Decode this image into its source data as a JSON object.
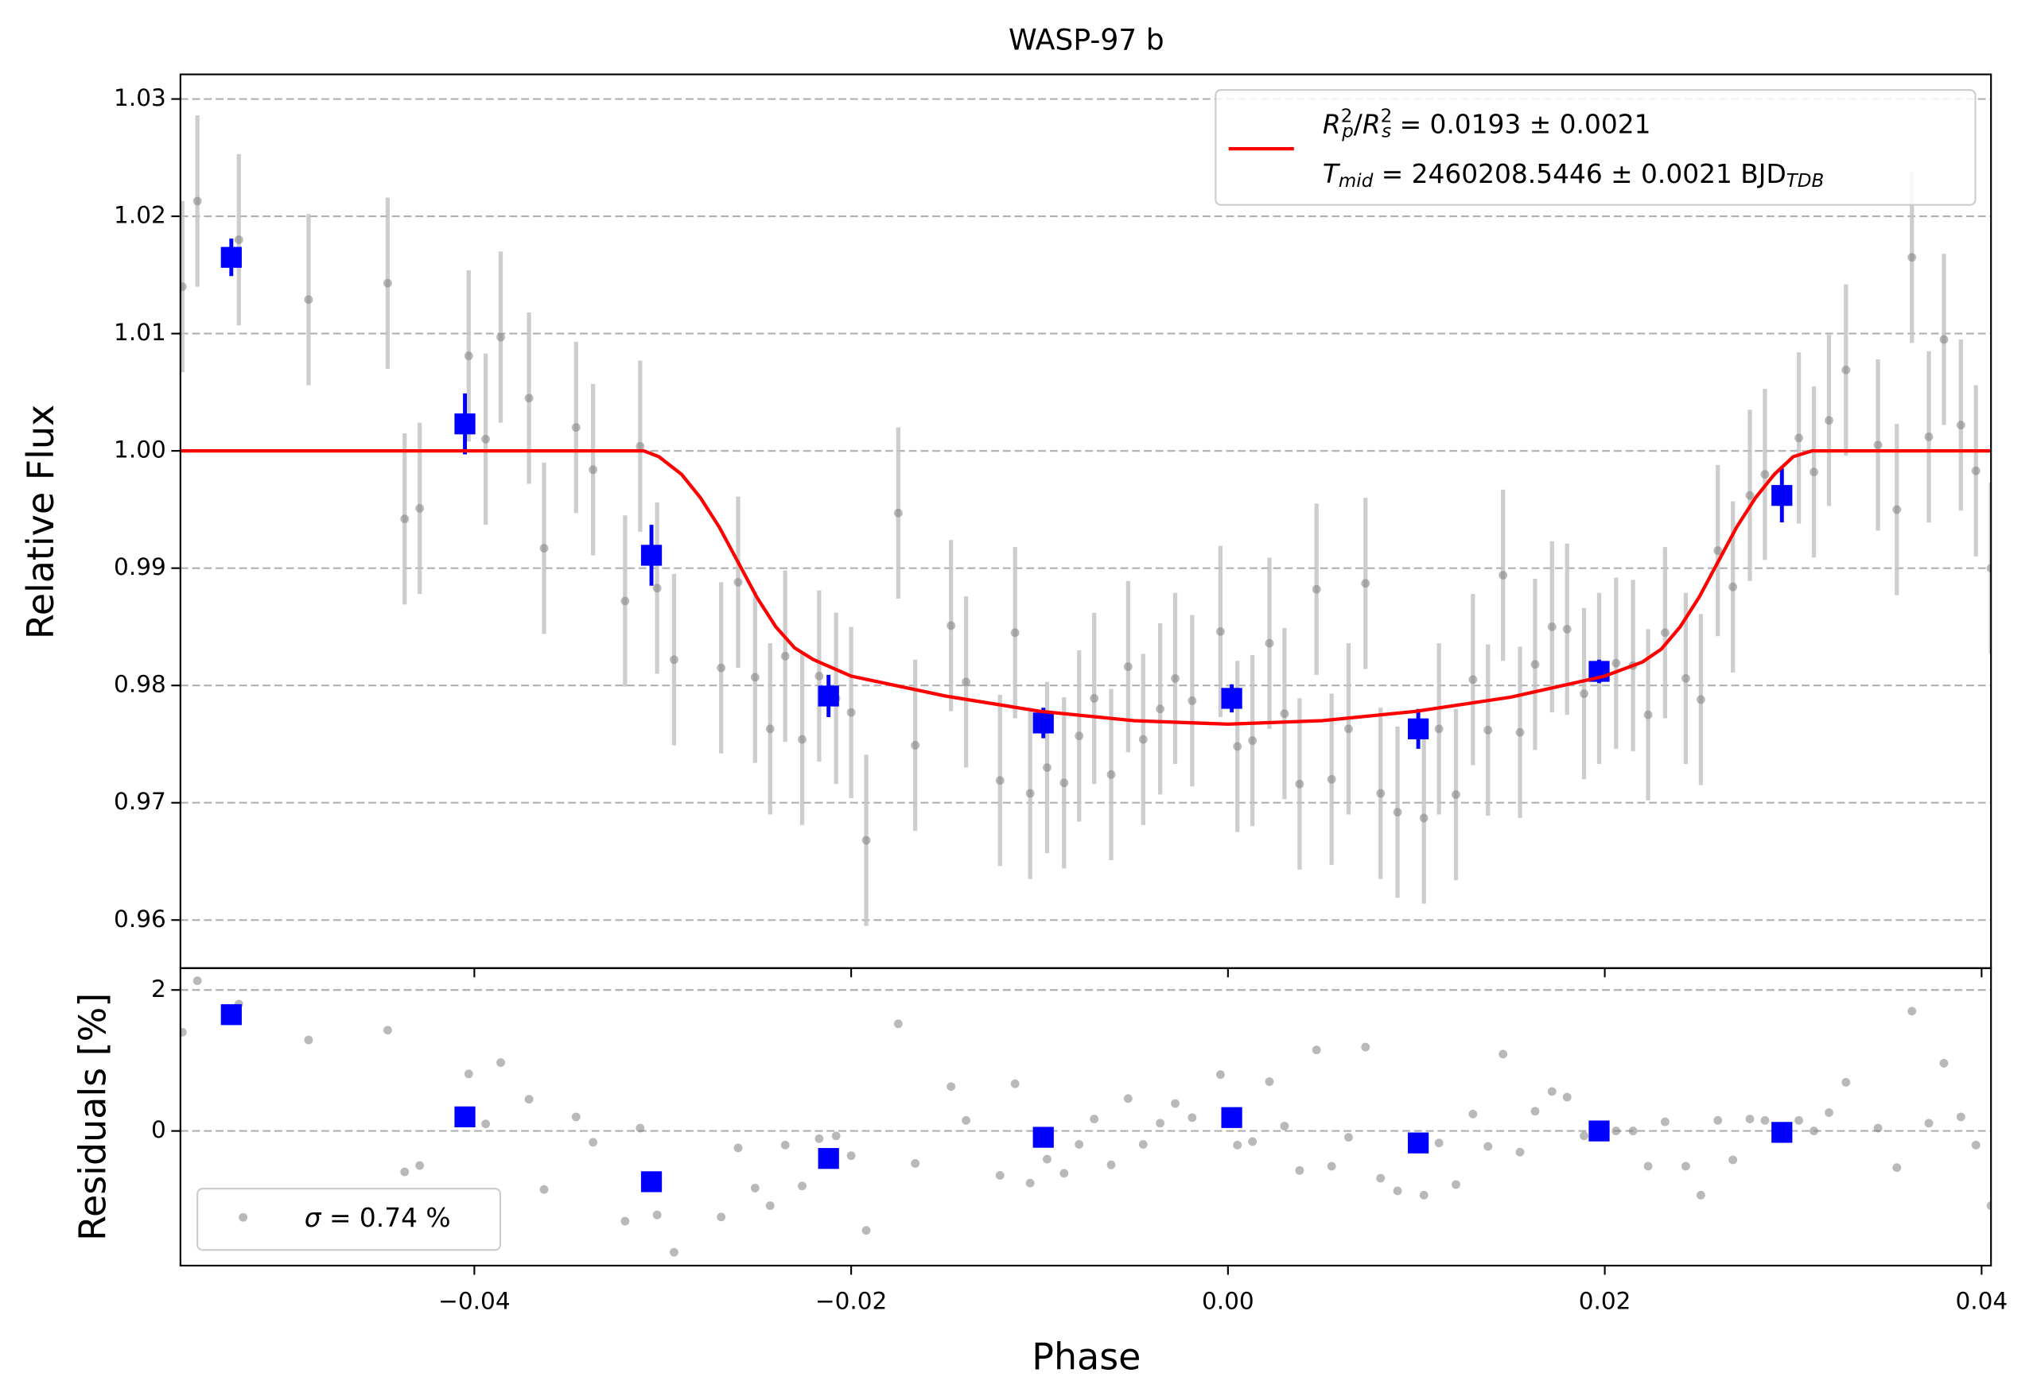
{
  "title": "WASP-97 b",
  "chart_data": [
    {
      "type": "errorbar",
      "ylabel": "Relative Flux",
      "ylim": [
        0.9559,
        1.0321
      ],
      "yticks": [
        0.96,
        0.97,
        0.98,
        0.99,
        {
          "value": 1,
          "label": "1.00"
        },
        1.01,
        1.02,
        1.03
      ],
      "grid": true,
      "legend": "upper right",
      "series": [
        {
          "type": "errorbar",
          "marker": "circle",
          "color": "#808080",
          "error_color": "#c4c4c4",
          "error": 0.0073,
          "x": [
            -0.0555,
            -0.0547,
            -0.0525,
            -0.0488,
            -0.0446,
            -0.0437,
            -0.0429,
            -0.0403,
            -0.0394,
            -0.0386,
            -0.0371,
            -0.0363,
            -0.0346,
            -0.0337,
            -0.032,
            -0.0312,
            -0.0303,
            -0.0294,
            -0.0269,
            -0.026,
            -0.0251,
            -0.0243,
            -0.0235,
            -0.0226,
            -0.0217,
            -0.0208,
            -0.02,
            -0.0192,
            -0.0175,
            -0.0166,
            -0.0147,
            -0.0139,
            -0.0121,
            -0.0113,
            -0.0105,
            -0.0096,
            -0.0087,
            -0.0079,
            -0.0071,
            -0.0062,
            -0.0053,
            -0.0045,
            -0.0036,
            -0.0028,
            -0.0019,
            -0.0004,
            0.0005,
            0.0013,
            0.0022,
            0.003,
            0.0038,
            0.0047,
            0.0055,
            0.0064,
            0.0073,
            0.0081,
            0.009,
            0.0104,
            0.0112,
            0.0121,
            0.013,
            0.0138,
            0.0146,
            0.0155,
            0.0163,
            0.0172,
            0.018,
            0.0189,
            0.0197,
            0.0206,
            0.0215,
            0.0223,
            0.0232,
            0.0243,
            0.0251,
            0.026,
            0.0268,
            0.0277,
            0.0285,
            0.0303,
            0.0311,
            0.0319,
            0.0328,
            0.0345,
            0.0355,
            0.0363,
            0.0372,
            0.038,
            0.0389,
            0.0397,
            0.0405
          ],
          "values": [
            1.014,
            1.0213,
            1.018,
            1.0129,
            1.0143,
            0.9942,
            0.9951,
            1.0081,
            1.001,
            1.0097,
            1.0045,
            0.9917,
            1.002,
            0.9984,
            0.9872,
            1.0004,
            0.9883,
            0.9822,
            0.9815,
            0.9888,
            0.9807,
            0.9763,
            0.9825,
            0.9754,
            0.9808,
            0.9789,
            0.9777,
            0.9668,
            0.9947,
            0.9749,
            0.9851,
            0.9803,
            0.9719,
            0.9845,
            0.9708,
            0.973,
            0.9717,
            0.9757,
            0.9789,
            0.9724,
            0.9816,
            0.9754,
            0.978,
            0.9806,
            0.9787,
            0.9846,
            0.9748,
            0.9753,
            0.9836,
            0.9776,
            0.9716,
            0.9882,
            0.972,
            0.9763,
            0.9887,
            0.9708,
            0.9692,
            0.9687,
            0.9763,
            0.9707,
            0.9805,
            0.9762,
            0.9894,
            0.976,
            0.9818,
            0.985,
            0.9848,
            0.9793,
            0.9806,
            0.9819,
            0.9817,
            0.9775,
            0.9845,
            0.9806,
            0.9788,
            0.9915,
            0.9884,
            0.9962,
            0.998,
            1.0011,
            0.9982,
            1.0026,
            1.0069,
            1.0005,
            0.995,
            1.0165,
            1.0012,
            1.0095,
            1.0022,
            0.9983,
            0.99
          ]
        },
        {
          "type": "errorbar",
          "marker": "square",
          "color": "#0000ff",
          "error_color": "#0000ff",
          "x": [
            -0.0529,
            -0.0405,
            -0.0306,
            -0.0212,
            -0.0098,
            0.0002,
            0.0101,
            0.0197,
            0.0294
          ],
          "values": [
            1.0165,
            1.0023,
            0.9911,
            0.9791,
            0.9768,
            0.9789,
            0.9763,
            0.9812,
            0.9962
          ],
          "errors": [
            0.0016,
            0.0026,
            0.0026,
            0.0018,
            0.0013,
            0.0012,
            0.0017,
            0.001,
            0.0023
          ]
        },
        {
          "type": "line",
          "color": "#ff0000",
          "label": [
            {
              "text": "R",
              "style": "italic"
            },
            {
              "text": "2",
              "style": "sup"
            },
            {
              "text": "p",
              "style": "sub"
            },
            {
              "text": "/"
            },
            {
              "text": "R",
              "style": "italic"
            },
            {
              "text": "2",
              "style": "sup"
            },
            {
              "text": "s",
              "style": "sub"
            },
            {
              "text": " = 0.0193 ± 0.0021"
            }
          ],
          "label2": [
            {
              "text": "T",
              "style": "italic"
            },
            {
              "text": "mid",
              "style": "sub"
            },
            {
              "text": " = 2460208.5446 ± 0.0021 BJD"
            },
            {
              "text": "TDB",
              "style": "sub"
            }
          ],
          "x": [
            -0.0556,
            -0.031,
            -0.0302,
            -0.029,
            -0.028,
            -0.027,
            -0.026,
            -0.025,
            -0.024,
            -0.023,
            -0.022,
            -0.02,
            -0.015,
            -0.01,
            -0.005,
            0,
            0.005,
            0.01,
            0.015,
            0.02,
            0.022,
            0.023,
            0.024,
            0.025,
            0.026,
            0.027,
            0.028,
            0.029,
            0.03,
            0.031,
            0.0405
          ],
          "values": [
            1,
            1,
            0.9995,
            0.998,
            0.996,
            0.9935,
            0.9905,
            0.9875,
            0.985,
            0.9832,
            0.9822,
            0.9808,
            0.9791,
            0.9778,
            0.977,
            0.9767,
            0.977,
            0.9778,
            0.979,
            0.9808,
            0.982,
            0.9831,
            0.985,
            0.9875,
            0.9905,
            0.9935,
            0.996,
            0.998,
            0.9995,
            1,
            1
          ]
        }
      ]
    },
    {
      "type": "scatter",
      "ylabel": "Residuals [%]",
      "xlabel": "Phase",
      "ylim": [
        -1.91,
        2.31
      ],
      "yticks": [
        0,
        2
      ],
      "grid": true,
      "legend": "lower left",
      "xlim": [
        -0.0556,
        0.0405
      ],
      "xticks": [
        {
          "value": -0.04,
          "label": "−0.04"
        },
        {
          "value": -0.02,
          "label": "−0.02"
        },
        {
          "value": 0,
          "label": "0.00"
        },
        0.02,
        0.04
      ],
      "series": [
        {
          "type": "scatter",
          "marker": "circle",
          "color": "#808080",
          "label": [
            {
              "text": "σ",
              "style": "italic"
            },
            {
              "text": " = 0.74 %"
            }
          ],
          "x": [
            -0.0555,
            -0.0547,
            -0.0525,
            -0.0488,
            -0.0446,
            -0.0437,
            -0.0429,
            -0.0403,
            -0.0394,
            -0.0386,
            -0.0371,
            -0.0363,
            -0.0346,
            -0.0337,
            -0.032,
            -0.0312,
            -0.0303,
            -0.0294,
            -0.0269,
            -0.026,
            -0.0251,
            -0.0243,
            -0.0235,
            -0.0226,
            -0.0217,
            -0.0208,
            -0.02,
            -0.0192,
            -0.0175,
            -0.0166,
            -0.0147,
            -0.0139,
            -0.0121,
            -0.0113,
            -0.0105,
            -0.0096,
            -0.0087,
            -0.0079,
            -0.0071,
            -0.0062,
            -0.0053,
            -0.0045,
            -0.0036,
            -0.0028,
            -0.0019,
            -0.0004,
            0.0005,
            0.0013,
            0.0022,
            0.003,
            0.0038,
            0.0047,
            0.0055,
            0.0064,
            0.0073,
            0.0081,
            0.009,
            0.0104,
            0.0112,
            0.0121,
            0.013,
            0.0138,
            0.0146,
            0.0155,
            0.0163,
            0.0172,
            0.018,
            0.0189,
            0.0197,
            0.0206,
            0.0215,
            0.0223,
            0.0232,
            0.0243,
            0.0251,
            0.026,
            0.0268,
            0.0277,
            0.0285,
            0.0303,
            0.0311,
            0.0319,
            0.0328,
            0.0345,
            0.0355,
            0.0363,
            0.0372,
            0.038,
            0.0389,
            0.0397,
            0.0405
          ],
          "values": [
            1.4,
            2.13,
            1.8,
            1.29,
            1.43,
            -0.58,
            -0.49,
            0.81,
            0.1,
            0.97,
            0.45,
            -0.83,
            0.2,
            -0.16,
            -1.28,
            0.04,
            -1.19,
            -1.72,
            -1.22,
            -0.24,
            -0.81,
            -1.06,
            -0.2,
            -0.78,
            -0.11,
            -0.07,
            -0.35,
            -1.41,
            1.52,
            -0.46,
            0.63,
            0.15,
            -0.63,
            0.67,
            -0.74,
            -0.4,
            -0.6,
            -0.19,
            0.17,
            -0.48,
            0.46,
            -0.19,
            0.11,
            0.39,
            0.19,
            0.8,
            -0.2,
            -0.15,
            0.7,
            0.07,
            -0.56,
            1.15,
            -0.5,
            -0.09,
            1.19,
            -0.67,
            -0.85,
            -0.91,
            -0.17,
            -0.76,
            0.24,
            -0.22,
            1.09,
            -0.3,
            0.28,
            0.56,
            0.48,
            -0.07,
            0.02,
            0,
            0,
            -0.5,
            0.13,
            -0.5,
            -0.91,
            0.15,
            -0.41,
            0.17,
            0.15,
            0.15,
            0,
            0.26,
            0.69,
            0.04,
            -0.52,
            1.7,
            0.11,
            0.96,
            0.2,
            -0.2,
            -1.06
          ]
        },
        {
          "type": "scatter",
          "marker": "square",
          "color": "#0000ff",
          "x": [
            -0.0529,
            -0.0405,
            -0.0306,
            -0.0212,
            -0.0098,
            0.0002,
            0.0101,
            0.0197,
            0.0294
          ],
          "values": [
            1.65,
            0.2,
            -0.72,
            -0.39,
            -0.09,
            0.19,
            -0.17,
            0,
            -0.02
          ]
        }
      ]
    }
  ]
}
